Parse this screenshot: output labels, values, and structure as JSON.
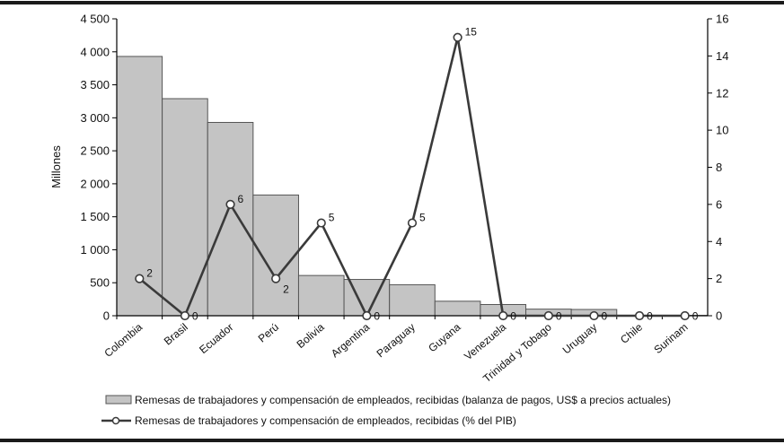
{
  "chart_data": {
    "type": "bar",
    "y_axis_label": "Millones",
    "categories": [
      "Colombia",
      "Brasil",
      "Ecuador",
      "Perú",
      "Bolivia",
      "Argentina",
      "Paraguay",
      "Guyana",
      "Venezuela",
      "Trinidad y Tobago",
      "Uruguay",
      "Chile",
      "Surinam"
    ],
    "series": [
      {
        "name": "Remesas de trabajadores y compensación de empleados, recibidas (balanza de pagos, US$ a precios actuales)",
        "type": "bar",
        "axis": "left",
        "values": [
          3930,
          3290,
          2930,
          1830,
          610,
          550,
          470,
          220,
          170,
          100,
          95,
          5,
          5
        ]
      },
      {
        "name": "Remesas de trabajadores y compensación de empleados, recibidas (% del PIB)",
        "type": "line",
        "axis": "right",
        "values": [
          2,
          0,
          6,
          2,
          5,
          0,
          5,
          15,
          0,
          0,
          0,
          0,
          0
        ],
        "labels": [
          "2",
          "0",
          "6",
          "2",
          "5",
          "0",
          "5",
          "15",
          "0",
          "0",
          "0",
          "0",
          "0"
        ]
      }
    ],
    "y_left": {
      "min": 0,
      "max": 4500,
      "step": 500,
      "tick_labels": [
        "0",
        "500",
        "1 000",
        "1 500",
        "2 000",
        "2 500",
        "3 000",
        "3 500",
        "4 000",
        "4 500"
      ]
    },
    "y_right": {
      "min": 0,
      "max": 16,
      "step": 2,
      "tick_labels": [
        "0",
        "2",
        "4",
        "6",
        "8",
        "10",
        "12",
        "14",
        "16"
      ]
    },
    "legend_position": "bottom",
    "colors": {
      "bar_fill": "#c4c4c4",
      "bar_stroke": "#555555",
      "line": "#3a3a3a",
      "marker_fill": "#ffffff"
    }
  },
  "legend": {
    "bar_text": "Remesas de trabajadores y compensación de empleados, recibidas (balanza de pagos, US$ a precios actuales)",
    "line_text": "Remesas de trabajadores y compensación de empleados, recibidas (% del PIB)"
  }
}
